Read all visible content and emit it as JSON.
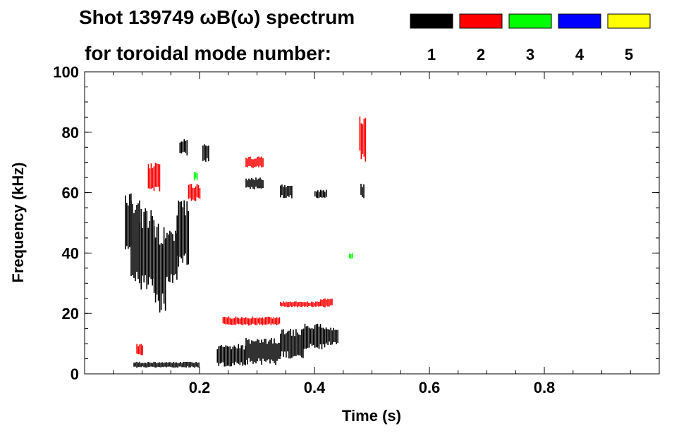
{
  "chart_data": {
    "type": "heatmap",
    "title_line1": "Shot 139749 ωB(ω) spectrum",
    "title_line2": "for toroidal mode number:",
    "xlabel": "Time (s)",
    "ylabel": "Frequency (kHz)",
    "xlim": [
      0.0,
      1.0
    ],
    "ylim": [
      0,
      100
    ],
    "x_ticks": [
      {
        "value": 0.2,
        "label": "0.2"
      },
      {
        "value": 0.4,
        "label": "0.4"
      },
      {
        "value": 0.6,
        "label": "0.6"
      },
      {
        "value": 0.8,
        "label": "0.8"
      }
    ],
    "x_minor_step": 0.05,
    "y_ticks": [
      {
        "value": 0,
        "label": "0"
      },
      {
        "value": 20,
        "label": "20"
      },
      {
        "value": 40,
        "label": "40"
      },
      {
        "value": 60,
        "label": "60"
      },
      {
        "value": 80,
        "label": "80"
      },
      {
        "value": 100,
        "label": "100"
      }
    ],
    "y_minor_step": 5,
    "legend": [
      {
        "label": "1",
        "color": "#000000"
      },
      {
        "label": "2",
        "color": "#ff0000"
      },
      {
        "label": "3",
        "color": "#00ff00"
      },
      {
        "label": "4",
        "color": "#0000ff"
      },
      {
        "label": "5",
        "color": "#ffff00"
      }
    ],
    "regions": [
      {
        "mode": 1,
        "t0": 0.07,
        "t1": 0.08,
        "f0": 38,
        "f1": 60
      },
      {
        "mode": 1,
        "t0": 0.08,
        "t1": 0.095,
        "f0": 30,
        "f1": 58
      },
      {
        "mode": 1,
        "t0": 0.095,
        "t1": 0.12,
        "f0": 26,
        "f1": 55
      },
      {
        "mode": 1,
        "t0": 0.12,
        "t1": 0.14,
        "f0": 20,
        "f1": 50
      },
      {
        "mode": 1,
        "t0": 0.14,
        "t1": 0.16,
        "f0": 30,
        "f1": 48
      },
      {
        "mode": 1,
        "t0": 0.16,
        "t1": 0.18,
        "f0": 35,
        "f1": 58
      },
      {
        "mode": 1,
        "t0": 0.165,
        "t1": 0.178,
        "f0": 72,
        "f1": 78
      },
      {
        "mode": 1,
        "t0": 0.205,
        "t1": 0.215,
        "f0": 70,
        "f1": 76
      },
      {
        "mode": 1,
        "t0": 0.085,
        "t1": 0.2,
        "f0": 2,
        "f1": 4
      },
      {
        "mode": 1,
        "t0": 0.23,
        "t1": 0.28,
        "f0": 2,
        "f1": 10
      },
      {
        "mode": 1,
        "t0": 0.28,
        "t1": 0.34,
        "f0": 3,
        "f1": 12
      },
      {
        "mode": 1,
        "t0": 0.34,
        "t1": 0.38,
        "f0": 5,
        "f1": 15
      },
      {
        "mode": 1,
        "t0": 0.38,
        "t1": 0.42,
        "f0": 8,
        "f1": 17
      },
      {
        "mode": 1,
        "t0": 0.42,
        "t1": 0.44,
        "f0": 9,
        "f1": 16
      },
      {
        "mode": 1,
        "t0": 0.28,
        "t1": 0.31,
        "f0": 61,
        "f1": 65
      },
      {
        "mode": 1,
        "t0": 0.34,
        "t1": 0.36,
        "f0": 58,
        "f1": 63
      },
      {
        "mode": 1,
        "t0": 0.4,
        "t1": 0.42,
        "f0": 58,
        "f1": 61
      },
      {
        "mode": 1,
        "t0": 0.48,
        "t1": 0.485,
        "f0": 58,
        "f1": 63
      },
      {
        "mode": 2,
        "t0": 0.11,
        "t1": 0.13,
        "f0": 60,
        "f1": 70
      },
      {
        "mode": 2,
        "t0": 0.18,
        "t1": 0.2,
        "f0": 57,
        "f1": 63
      },
      {
        "mode": 2,
        "t0": 0.28,
        "t1": 0.31,
        "f0": 68,
        "f1": 72
      },
      {
        "mode": 2,
        "t0": 0.24,
        "t1": 0.34,
        "f0": 16,
        "f1": 19
      },
      {
        "mode": 2,
        "t0": 0.34,
        "t1": 0.41,
        "f0": 22,
        "f1": 24
      },
      {
        "mode": 2,
        "t0": 0.41,
        "t1": 0.43,
        "f0": 22,
        "f1": 25
      },
      {
        "mode": 2,
        "t0": 0.478,
        "t1": 0.49,
        "f0": 70,
        "f1": 86
      },
      {
        "mode": 2,
        "t0": 0.09,
        "t1": 0.1,
        "f0": 6,
        "f1": 10
      },
      {
        "mode": 3,
        "t0": 0.19,
        "t1": 0.197,
        "f0": 64,
        "f1": 67
      },
      {
        "mode": 3,
        "t0": 0.46,
        "t1": 0.465,
        "f0": 38,
        "f1": 40
      }
    ]
  }
}
